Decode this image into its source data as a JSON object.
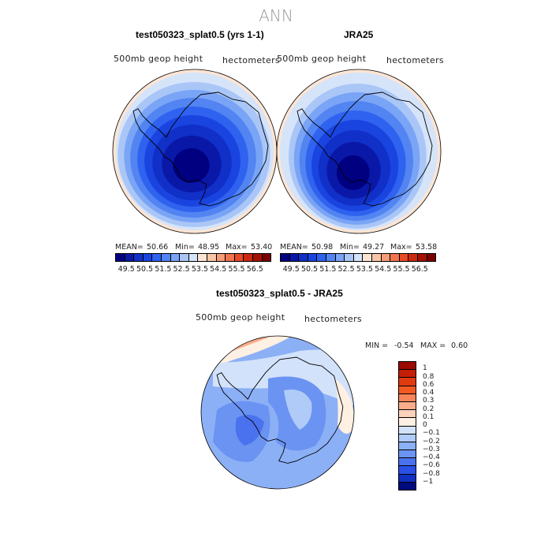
{
  "chart_data": {
    "type": "map",
    "title": "ANN",
    "panels": [
      {
        "id": "model",
        "title": "test050323_splat0.5 (yrs 1-1)",
        "left_label": "500mb geop height",
        "right_label": "hectometers",
        "stats": {
          "mean_label": "MEAN=",
          "mean": "50.66",
          "min_label": "Min=",
          "min": "48.95",
          "max_label": "Max=",
          "max": "53.40"
        }
      },
      {
        "id": "obs",
        "title": "JRA25",
        "left_label": "500mb geop height",
        "right_label": "hectometers",
        "stats": {
          "mean_label": "MEAN=",
          "mean": "50.98",
          "min_label": "Min=",
          "min": "49.27",
          "max_label": "Max=",
          "max": "53.58"
        }
      },
      {
        "id": "diff",
        "title": "test050323_splat0.5 - JRA25",
        "left_label": "500mb geop height",
        "right_label": "hectometers",
        "stats": {
          "min_label": "MIN =",
          "min": "-0.54",
          "max_label": "MAX =",
          "max": "0.60"
        }
      }
    ],
    "field_colorbar": {
      "ticks": [
        "49.5",
        "50.5",
        "51.5",
        "52.5",
        "53.5",
        "54.5",
        "55.5",
        "56.5"
      ],
      "colors": [
        "#000080",
        "#0a18a8",
        "#1030c8",
        "#1a44e0",
        "#2f62ef",
        "#5284f2",
        "#7aa4f5",
        "#a9c6f7",
        "#d6e4fa",
        "#fde5d3",
        "#f9c5a8",
        "#f59c78",
        "#f0744e",
        "#e84a26",
        "#cc2a10",
        "#a31205",
        "#7a0000"
      ]
    },
    "diff_colorbar": {
      "ticks": [
        "1",
        "0.8",
        "0.6",
        "0.4",
        "0.3",
        "0.2",
        "0.1",
        "0",
        "-0.1",
        "-0.2",
        "-0.3",
        "-0.4",
        "-0.6",
        "-0.8",
        "-1"
      ],
      "colors": [
        "#9a0a00",
        "#c41e08",
        "#e03a10",
        "#f25a22",
        "#f7845a",
        "#fbad8b",
        "#fdd1ba",
        "#fef0e2",
        "#d2e2fa",
        "#b0cbf8",
        "#8cb0f6",
        "#6a93f2",
        "#4a72ee",
        "#2a50e6",
        "#1030c0",
        "#000a80"
      ]
    },
    "field_bands_outer_to_inner": [
      "#fde5d3",
      "#d6e4fa",
      "#a9c6f7",
      "#7aa4f5",
      "#5284f2",
      "#2f62ef",
      "#1a44e0",
      "#1030c8",
      "#0a18a8",
      "#000080"
    ]
  }
}
